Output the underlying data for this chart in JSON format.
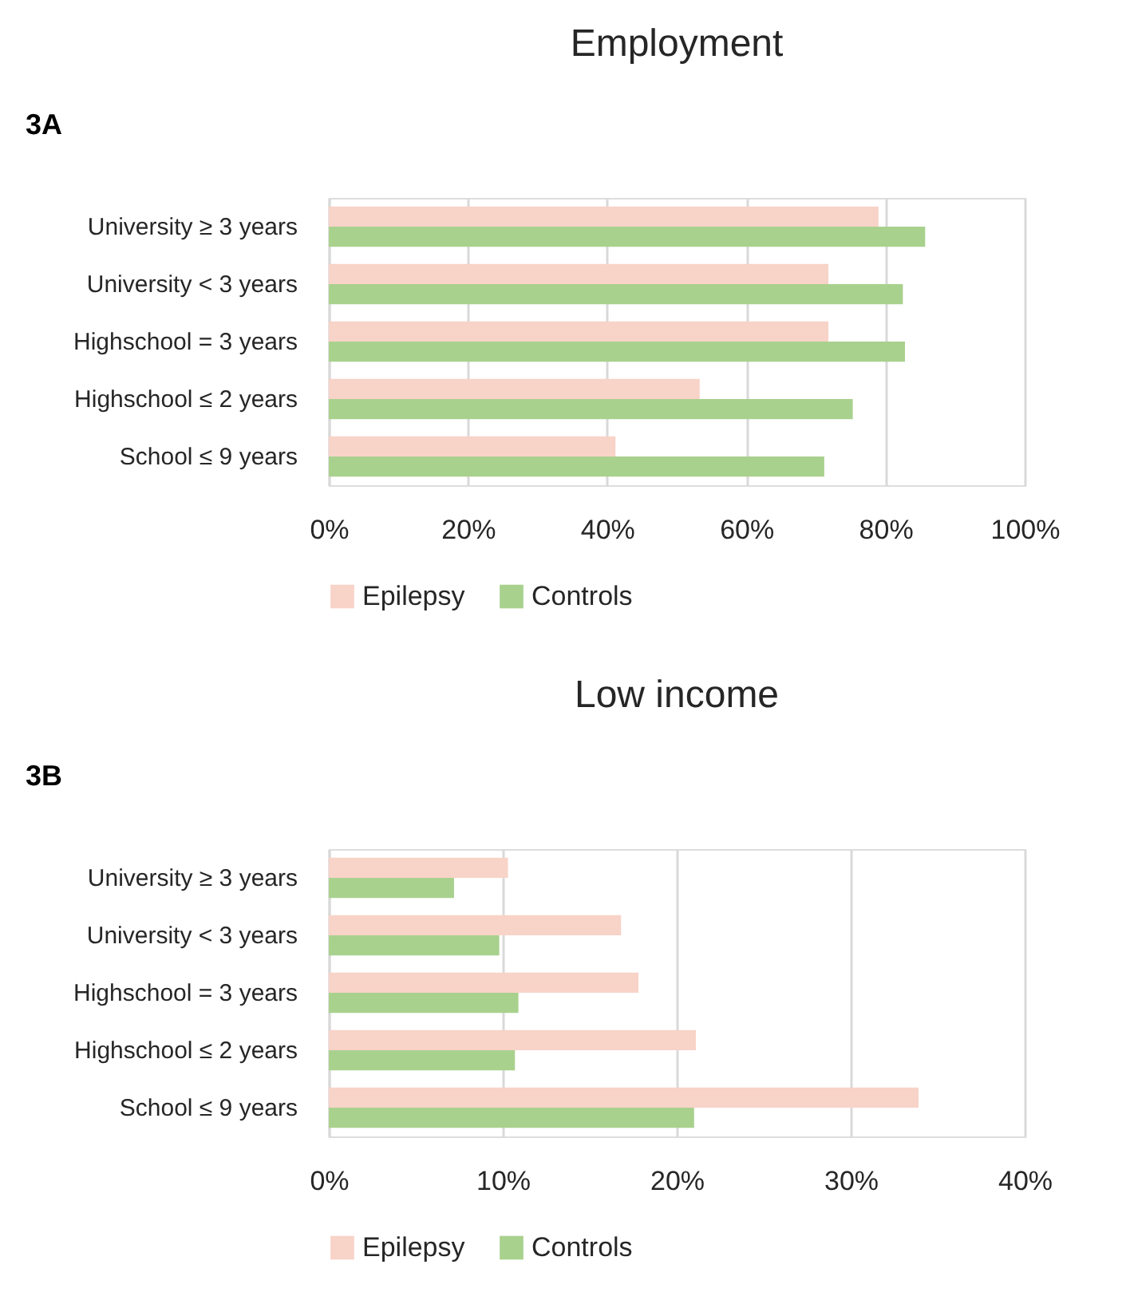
{
  "chart_data": [
    {
      "type": "bar",
      "orientation": "horizontal",
      "title": "Employment",
      "annotations": [
        "3A"
      ],
      "categories": [
        "University ≥ 3 years",
        "University < 3 years",
        "Highschool = 3 years",
        "Highschool ≤ 2 years",
        "School ≤ 9 years"
      ],
      "series": [
        {
          "name": "Epilepsy",
          "color": "#f8d3c8",
          "values": [
            79,
            71.8,
            71.8,
            53.3,
            41.2
          ]
        },
        {
          "name": "Controls",
          "color": "#a9d18e",
          "values": [
            85.7,
            82.5,
            82.8,
            75.3,
            71.2
          ]
        }
      ],
      "xlim": [
        0,
        100
      ],
      "xticks": [
        {
          "value": 0,
          "label": "0%"
        },
        {
          "value": 20,
          "label": "20%"
        },
        {
          "value": 40,
          "label": "40%"
        },
        {
          "value": 60,
          "label": "60%"
        },
        {
          "value": 80,
          "label": "80%"
        },
        {
          "value": 100,
          "label": "100%"
        }
      ],
      "grid": "x",
      "legend": "bottom"
    },
    {
      "type": "bar",
      "orientation": "horizontal",
      "title": "Low income",
      "annotations": [
        "3B"
      ],
      "categories": [
        "University ≥ 3 years",
        "University < 3 years",
        "Highschool = 3 years",
        "Highschool ≤ 2 years",
        "School ≤ 9 years"
      ],
      "series": [
        {
          "name": "Epilepsy",
          "color": "#f8d3c8",
          "values": [
            10.3,
            16.8,
            17.8,
            21.1,
            33.9
          ]
        },
        {
          "name": "Controls",
          "color": "#a9d18e",
          "values": [
            7.2,
            9.8,
            10.9,
            10.7,
            21.0
          ]
        }
      ],
      "xlim": [
        0,
        40
      ],
      "xticks": [
        {
          "value": 0,
          "label": "0%"
        },
        {
          "value": 10,
          "label": "10%"
        },
        {
          "value": 20,
          "label": "20%"
        },
        {
          "value": 30,
          "label": "30%"
        },
        {
          "value": 40,
          "label": "40%"
        }
      ],
      "grid": "x",
      "legend": "bottom"
    }
  ]
}
